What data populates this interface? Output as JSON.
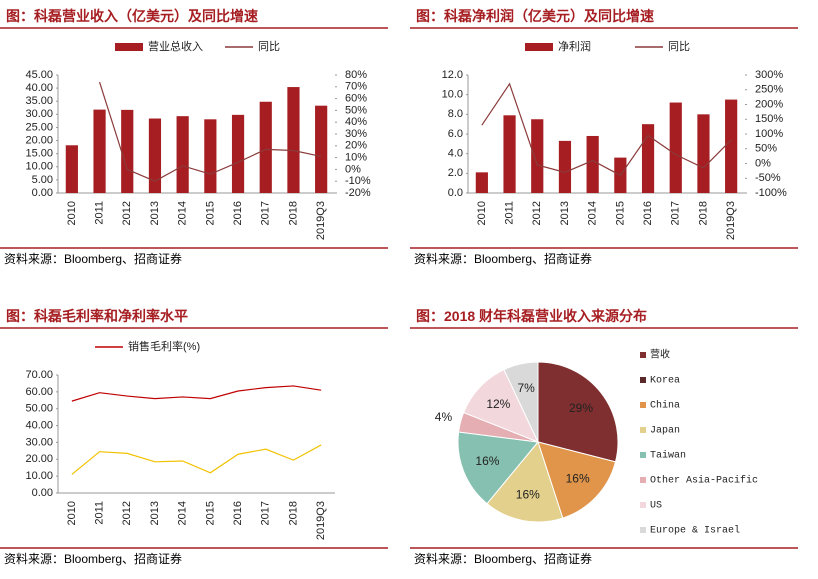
{
  "chart_data": [
    {
      "type": "bar",
      "title": "图：科磊营业收入（亿美元）及同比增速",
      "source": "资料来源：Bloomberg、招商证券",
      "categories": [
        "2010",
        "2011",
        "2012",
        "2013",
        "2014",
        "2015",
        "2016",
        "2017",
        "2018",
        "2019Q3"
      ],
      "series": [
        {
          "name": "营业总收入",
          "type": "bar",
          "color": "#a61e22",
          "values": [
            18.2,
            31.8,
            31.7,
            28.4,
            29.3,
            28.1,
            29.8,
            34.8,
            40.4,
            33.3
          ]
        },
        {
          "name": "同比",
          "type": "line",
          "axis": "y2",
          "color": "#8b3a3a",
          "values": [
            null,
            74,
            0,
            -10,
            3,
            -4,
            6,
            17,
            16,
            11
          ]
        }
      ],
      "ylim": [
        0,
        45
      ],
      "yticks": [
        {
          "value": 0,
          "label": "0.00"
        },
        {
          "value": 5,
          "label": "5.00"
        },
        {
          "value": 10,
          "label": "10.00"
        },
        {
          "value": 15,
          "label": "15.00"
        },
        {
          "value": 20,
          "label": "20.00"
        },
        {
          "value": 25,
          "label": "25.00"
        },
        {
          "value": 30,
          "label": "30.00"
        },
        {
          "value": 35,
          "label": "35.00"
        },
        {
          "value": 40,
          "label": "40.00"
        },
        {
          "value": 45,
          "label": "45.00"
        }
      ],
      "y2lim": [
        -20,
        80
      ],
      "y2ticks": [
        {
          "value": -20,
          "label": "-20%"
        },
        {
          "value": -10,
          "label": "-10%"
        },
        {
          "value": 0,
          "label": "0%"
        },
        {
          "value": 10,
          "label": "10%"
        },
        {
          "value": 20,
          "label": "20%"
        },
        {
          "value": 30,
          "label": "30%"
        },
        {
          "value": 40,
          "label": "40%"
        },
        {
          "value": 50,
          "label": "50%"
        },
        {
          "value": 60,
          "label": "60%"
        },
        {
          "value": 70,
          "label": "70%"
        },
        {
          "value": 80,
          "label": "80%"
        }
      ]
    },
    {
      "type": "bar",
      "title": "图：科磊净利润（亿美元）及同比增速",
      "source": "资料来源：Bloomberg、招商证券",
      "categories": [
        "2010",
        "2011",
        "2012",
        "2013",
        "2014",
        "2015",
        "2016",
        "2017",
        "2018",
        "2019Q3"
      ],
      "series": [
        {
          "name": "净利润",
          "type": "bar",
          "color": "#a61e22",
          "values": [
            2.1,
            7.9,
            7.5,
            5.3,
            5.8,
            3.6,
            7.0,
            9.2,
            8.0,
            9.5
          ]
        },
        {
          "name": "同比",
          "type": "line",
          "axis": "y2",
          "color": "#8b3a3a",
          "values": [
            130,
            270,
            -5,
            -30,
            10,
            -40,
            95,
            30,
            -15,
            80
          ]
        }
      ],
      "ylim": [
        0,
        12
      ],
      "yticks": [
        {
          "value": 0,
          "label": "0.0"
        },
        {
          "value": 2,
          "label": "2.0"
        },
        {
          "value": 4,
          "label": "4.0"
        },
        {
          "value": 6,
          "label": "6.0"
        },
        {
          "value": 8,
          "label": "8.0"
        },
        {
          "value": 10,
          "label": "10.0"
        },
        {
          "value": 12,
          "label": "12.0"
        }
      ],
      "y2lim": [
        -100,
        300
      ],
      "y2ticks": [
        {
          "value": -100,
          "label": "-100%"
        },
        {
          "value": -50,
          "label": "-50%"
        },
        {
          "value": 0,
          "label": "0%"
        },
        {
          "value": 50,
          "label": "50%"
        },
        {
          "value": 100,
          "label": "100%"
        },
        {
          "value": 150,
          "label": "150%"
        },
        {
          "value": 200,
          "label": "200%"
        },
        {
          "value": 250,
          "label": "250%"
        },
        {
          "value": 300,
          "label": "300%"
        }
      ]
    },
    {
      "type": "line",
      "title": "图：科磊毛利率和净利率水平",
      "source": "资料来源：Bloomberg、招商证券",
      "categories": [
        "2010",
        "2011",
        "2012",
        "2013",
        "2014",
        "2015",
        "2016",
        "2017",
        "2018",
        "2019Q3"
      ],
      "series": [
        {
          "name": "销售毛利率(%)",
          "color": "#c00000",
          "values": [
            54.5,
            59.5,
            57.5,
            56,
            57,
            56,
            60.5,
            62.5,
            63.5,
            61
          ]
        },
        {
          "color": "#f2c200",
          "values": [
            11,
            24.5,
            23.5,
            18.5,
            19,
            12,
            23,
            26,
            19.5,
            28.5
          ]
        }
      ],
      "ylim": [
        0,
        70
      ],
      "yticks": [
        {
          "value": 0,
          "label": "0.00"
        },
        {
          "value": 10,
          "label": "10.00"
        },
        {
          "value": 20,
          "label": "20.00"
        },
        {
          "value": 30,
          "label": "30.00"
        },
        {
          "value": 40,
          "label": "40.00"
        },
        {
          "value": 50,
          "label": "50.00"
        },
        {
          "value": 60,
          "label": "60.00"
        },
        {
          "value": 70,
          "label": "70.00"
        }
      ]
    },
    {
      "type": "pie",
      "title": "图：2018 财年科磊营业收入来源分布",
      "source": "资料来源：Bloomberg、招商证券",
      "categories": [
        "营收",
        "Korea",
        "China",
        "Japan",
        "Taiwan",
        "Other Asia-Pacific",
        "US",
        "Europe & Israel"
      ],
      "values": [
        29,
        null,
        16,
        16,
        16,
        4,
        12,
        7
      ],
      "value_labels": [
        "29%",
        null,
        "16%",
        "16%",
        "16%",
        "4%",
        "12%",
        "7%"
      ],
      "colors": [
        "#7f2f2f",
        "#5a2a2a",
        "#e0954a",
        "#e2d08c",
        "#86c0b0",
        "#e4aeb2",
        "#f2d8dc",
        "#d9d9d9"
      ]
    }
  ]
}
